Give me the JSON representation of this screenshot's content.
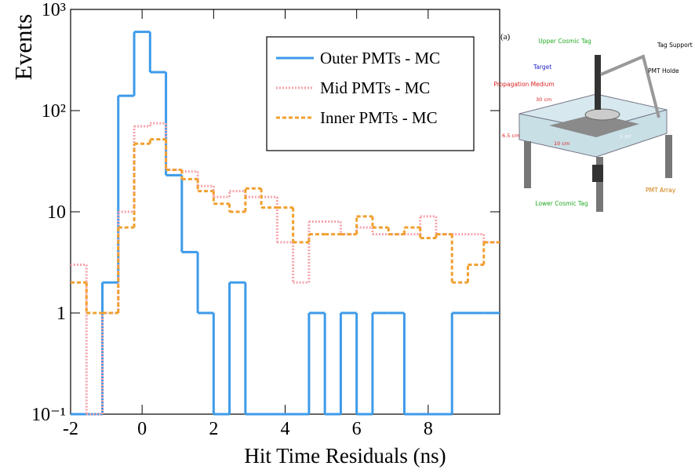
{
  "chart_data": {
    "type": "histogram",
    "xlabel": "Hit Time Residuals (ns)",
    "ylabel": "Events",
    "bins": [
      -2,
      -1.556,
      -1.111,
      -0.667,
      -0.222,
      0.222,
      0.667,
      1.111,
      1.556,
      2,
      2.444,
      2.889,
      3.333,
      3.778,
      4.222,
      4.667,
      5.111,
      5.556,
      6,
      6.444,
      6.889,
      7.333,
      7.778,
      8.222,
      8.667,
      9.111,
      9.556,
      10
    ],
    "series": [
      {
        "name": "Outer PMTs - MC",
        "color": "#3d9be9",
        "style": "solid",
        "values": [
          0,
          0,
          2,
          140,
          600,
          240,
          23,
          4,
          1,
          0,
          2,
          0,
          0,
          0,
          0,
          1,
          0,
          1,
          0,
          1,
          1,
          0,
          0,
          0,
          1,
          1,
          1
        ]
      },
      {
        "name": "Mid PMTs - MC",
        "color": "#f4a3ab",
        "style": "dotted",
        "values": [
          3,
          0,
          1,
          10,
          70,
          75,
          26,
          25,
          18,
          14,
          16,
          14,
          14,
          5,
          2,
          8,
          8,
          6,
          7,
          6,
          6,
          6,
          9,
          6,
          6,
          6,
          5
        ]
      },
      {
        "name": "Inner PMTs - MC",
        "color": "#f0a030",
        "style": "dashed",
        "values": [
          2,
          1,
          1,
          7,
          47,
          52,
          26,
          21,
          16,
          12,
          10,
          17,
          11,
          11,
          5,
          6,
          6,
          6,
          9,
          7,
          6,
          7,
          5.5,
          6,
          2,
          3,
          5
        ]
      }
    ],
    "xlim": [
      -2,
      10
    ],
    "xticks": [
      -2,
      0,
      2,
      4,
      6,
      8
    ],
    "ylim": [
      0.1,
      1000
    ],
    "log_y": true,
    "yticks": [
      {
        "value": 1000,
        "label": "10³"
      },
      {
        "value": 100,
        "label": "10²"
      },
      10,
      1,
      {
        "value": 0.1,
        "label": "10⁻¹"
      }
    ],
    "legend": "upper right"
  },
  "diagram": {
    "panel_label": "(a)",
    "labels": [
      "Upper Cosmic Tag",
      "Tag Support",
      "Target",
      "PMT Holde",
      "Propagation Medium",
      "30 cm",
      "6.5 cm",
      "10 cm",
      "1 in²",
      "Lower Cosmic Tag",
      "PMT Array"
    ]
  }
}
